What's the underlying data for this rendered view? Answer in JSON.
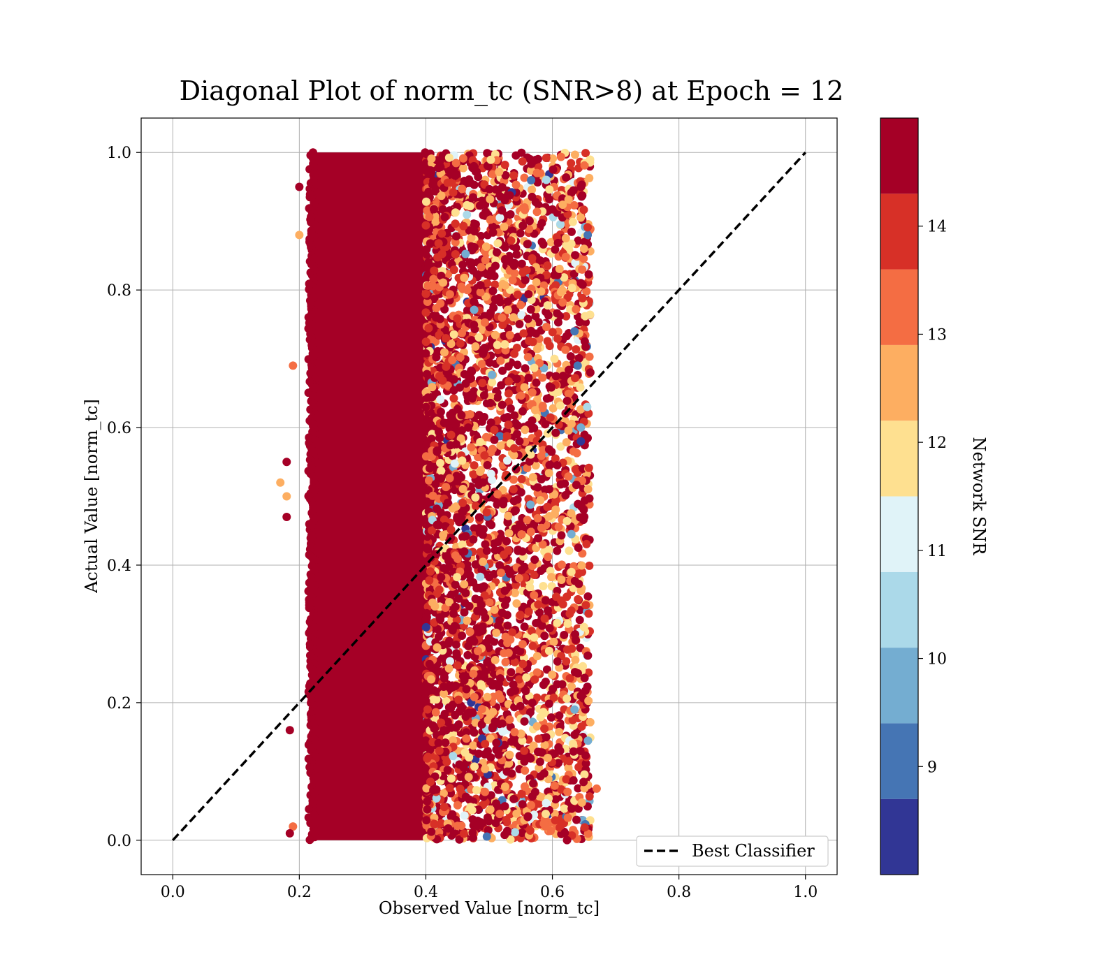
{
  "chart_data": {
    "type": "scatter",
    "title": "Diagonal Plot of norm_tc (SNR>8) at Epoch = 12",
    "xlabel": "Observed Value [norm_tc]",
    "ylabel": "Actual Value [norm_tc]",
    "xlim": [
      -0.05,
      1.05
    ],
    "ylim": [
      -0.05,
      1.05
    ],
    "xticks": [
      0.0,
      0.2,
      0.4,
      0.6,
      0.8,
      1.0
    ],
    "yticks": [
      0.0,
      0.2,
      0.4,
      0.6,
      0.8,
      1.0
    ],
    "xtick_labels": [
      "0.0",
      "0.2",
      "0.4",
      "0.6",
      "0.8",
      "1.0"
    ],
    "ytick_labels": [
      "0.0",
      "0.2",
      "0.4",
      "0.6",
      "0.8",
      "1.0"
    ],
    "grid": true,
    "legend_position": "lower-right",
    "series": [
      {
        "name": "Best Classifier",
        "kind": "line",
        "style": "dashed",
        "color": "#000000",
        "x": [
          0.0,
          1.0
        ],
        "y": [
          0.0,
          1.0
        ]
      },
      {
        "kind": "scatter",
        "color_by": "Network SNR",
        "dense_band": {
          "x": [
            0.21,
            0.4
          ],
          "y": [
            0.0,
            1.0
          ],
          "snr": 14.8
        },
        "scatter_band": {
          "x": [
            0.4,
            0.66
          ],
          "y": [
            0.0,
            1.0
          ]
        },
        "points": [
          {
            "x": 0.18,
            "y": 0.55,
            "snr": 14.8
          },
          {
            "x": 0.17,
            "y": 0.52,
            "snr": 12.5
          },
          {
            "x": 0.18,
            "y": 0.47,
            "snr": 14.8
          },
          {
            "x": 0.18,
            "y": 0.5,
            "snr": 12.5
          },
          {
            "x": 0.185,
            "y": 0.16,
            "snr": 14.8
          },
          {
            "x": 0.19,
            "y": 0.02,
            "snr": 13.5
          },
          {
            "x": 0.185,
            "y": 0.01,
            "snr": 14.8
          },
          {
            "x": 0.19,
            "y": 0.69,
            "snr": 13.5
          },
          {
            "x": 0.2,
            "y": 0.95,
            "snr": 14.8
          },
          {
            "x": 0.2,
            "y": 0.88,
            "snr": 12.5
          },
          {
            "x": 0.67,
            "y": 0.075,
            "snr": 13.5
          },
          {
            "x": 0.66,
            "y": 0.68,
            "snr": 14.8
          },
          {
            "x": 0.645,
            "y": 0.95,
            "snr": 14.8
          },
          {
            "x": 0.65,
            "y": 0.86,
            "snr": 12.5
          },
          {
            "x": 0.655,
            "y": 0.63,
            "snr": 10.5
          },
          {
            "x": 0.645,
            "y": 0.58,
            "snr": 8.5
          },
          {
            "x": 0.645,
            "y": 0.6,
            "snr": 10.0
          },
          {
            "x": 0.645,
            "y": 0.81,
            "snr": 14.8
          },
          {
            "x": 0.64,
            "y": 0.69,
            "snr": 9.0
          },
          {
            "x": 0.65,
            "y": 0.31,
            "snr": 11.5
          },
          {
            "x": 0.645,
            "y": 0.21,
            "snr": 14.5
          },
          {
            "x": 0.635,
            "y": 0.19,
            "snr": 9.5
          },
          {
            "x": 0.635,
            "y": 0.74,
            "snr": 9.0
          },
          {
            "x": 0.63,
            "y": 0.445,
            "snr": 10.0
          },
          {
            "x": 0.63,
            "y": 0.39,
            "snr": 11.5
          }
        ]
      }
    ],
    "colorbar": {
      "label": "Network SNR",
      "range": [
        8.0,
        15.0
      ],
      "ticks": [
        9,
        10,
        11,
        12,
        13,
        14
      ],
      "tick_labels": [
        "9",
        "10",
        "11",
        "12",
        "13",
        "14"
      ],
      "levels": [
        8.0,
        8.7,
        9.4,
        10.1,
        10.8,
        11.5,
        12.2,
        12.9,
        13.6,
        14.3,
        15.0
      ],
      "colors": [
        "#313695",
        "#4575b4",
        "#74add1",
        "#abd9e9",
        "#e0f3f8",
        "#fee090",
        "#fdae61",
        "#f46d43",
        "#d73027",
        "#a50026"
      ]
    }
  }
}
